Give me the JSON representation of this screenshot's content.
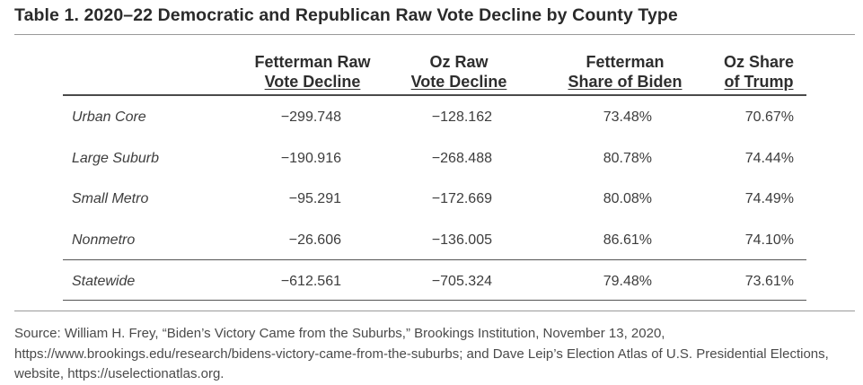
{
  "title": "Table 1. 2020–22 Democratic and Republican Raw Vote Decline by County Type",
  "columns": [
    {
      "line1": "Fetterman Raw",
      "line2": "Vote Decline"
    },
    {
      "line1": "Oz Raw",
      "line2": "Vote Decline"
    },
    {
      "line1": "Fetterman",
      "line2": "Share of Biden"
    },
    {
      "line1": "Oz Share",
      "line2": "of Trump"
    }
  ],
  "rows": [
    {
      "label": "Urban Core",
      "values": [
        "−299.748",
        "−128.162",
        "73.48%",
        "70.67%"
      ]
    },
    {
      "label": "Large Suburb",
      "values": [
        "−190.916",
        "−268.488",
        "80.78%",
        "74.44%"
      ]
    },
    {
      "label": "Small Metro",
      "values": [
        "−95.291",
        "−172.669",
        "80.08%",
        "74.49%"
      ]
    },
    {
      "label": "Nonmetro",
      "values": [
        "−26.606",
        "−136.005",
        "86.61%",
        "74.10%"
      ]
    },
    {
      "label": "Statewide",
      "values": [
        "−612.561",
        "−705.324",
        "79.48%",
        "73.61%"
      ]
    }
  ],
  "source": "Source: William H. Frey, “Biden’s Victory Came from the Suburbs,” Brookings Institution, November 13, 2020, https://www.brookings.edu/research/bidens-victory-came-from-the-suburbs; and Dave Leip’s Election Atlas of U.S. Presidential Elections, website, https://uselectionatlas.org."
}
